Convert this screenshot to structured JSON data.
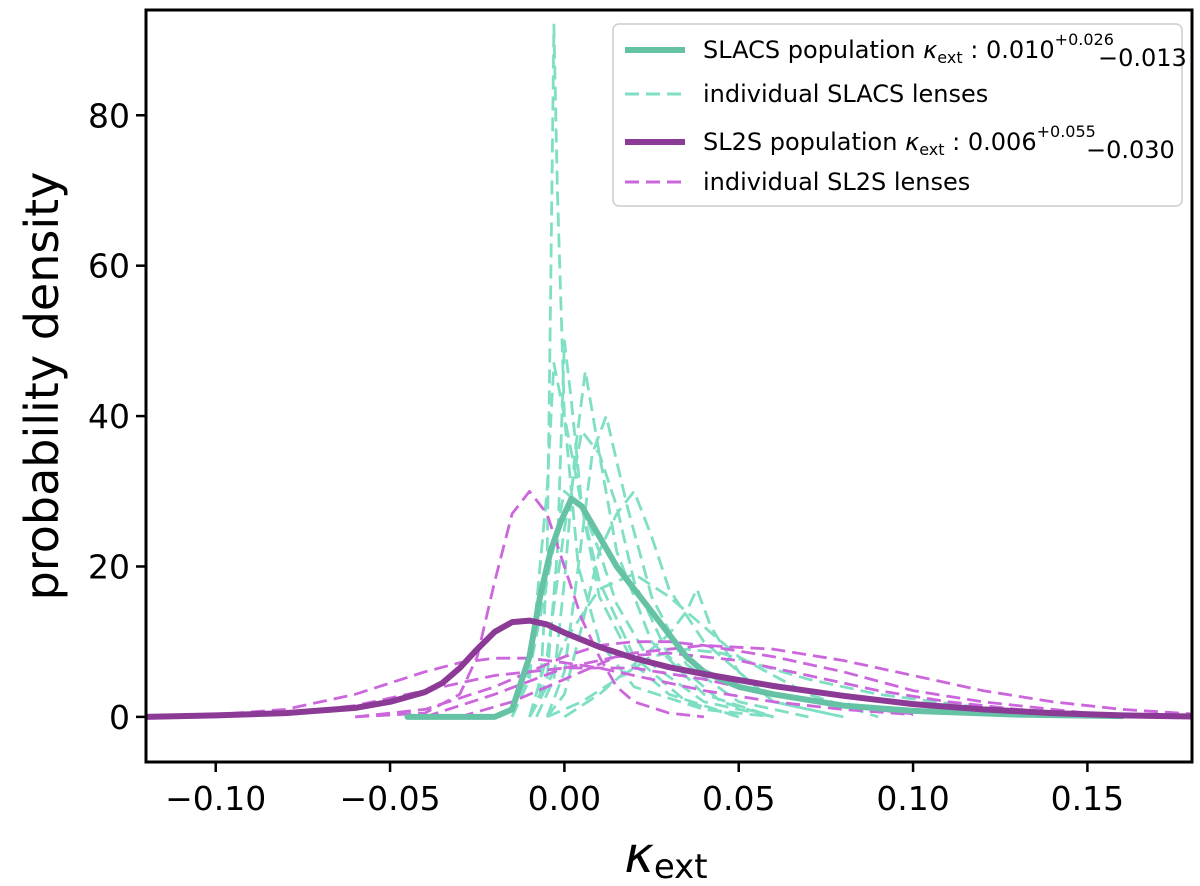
{
  "chart_data": {
    "type": "line",
    "title": "",
    "xlabel": "κ_ext",
    "ylabel": "probability density",
    "xlim": [
      -0.12,
      0.18
    ],
    "ylim": [
      -6,
      94
    ],
    "xticks": [
      -0.1,
      -0.05,
      0.0,
      0.05,
      0.1,
      0.15
    ],
    "xtick_labels": [
      "−0.10",
      "−0.05",
      "0.00",
      "0.05",
      "0.10",
      "0.15"
    ],
    "yticks": [
      0,
      20,
      40,
      60,
      80
    ],
    "ytick_labels": [
      "0",
      "20",
      "40",
      "60",
      "80"
    ],
    "grid": false,
    "legend_position": "top-right",
    "colors": {
      "slacs_population": "#66c2a5",
      "slacs_individual": "#7fdfc4",
      "sl2s_population": "#8b3a96",
      "sl2s_individual": "#cc66dd"
    },
    "legend": [
      {
        "label_main": "SLACS population ",
        "label_kappa": "κ",
        "label_sub": "ext",
        "label_value": " : 0.010",
        "label_sup": "+0.026",
        "label_lower": "−0.013",
        "style": "solid",
        "series": "slacs_population"
      },
      {
        "label_main": "individual SLACS lenses",
        "style": "dashed",
        "series": "slacs_individual"
      },
      {
        "label_main": "SL2S population ",
        "label_kappa": "κ",
        "label_sub": "ext",
        "label_value": " : 0.006",
        "label_sup": "+0.055",
        "label_lower": "−0.030",
        "style": "solid",
        "series": "sl2s_population"
      },
      {
        "label_main": "individual SL2S lenses",
        "style": "dashed",
        "series": "sl2s_individual"
      }
    ],
    "series": [
      {
        "name": "SLACS population",
        "group": "slacs_population",
        "style": "solid",
        "x": [
          -0.045,
          -0.03,
          -0.02,
          -0.015,
          -0.01,
          -0.007,
          -0.004,
          -0.001,
          0.002,
          0.005,
          0.01,
          0.015,
          0.02,
          0.025,
          0.03,
          0.035,
          0.04,
          0.05,
          0.06,
          0.08,
          0.1,
          0.13,
          0.16
        ],
        "y": [
          0,
          0,
          0,
          1,
          8,
          16,
          22,
          26,
          29,
          28,
          24,
          20,
          17,
          14,
          11,
          8,
          6,
          4,
          3,
          1.5,
          0.8,
          0.3,
          0.1
        ]
      },
      {
        "name": "SL2S population",
        "group": "sl2s_population",
        "style": "solid",
        "x": [
          -0.12,
          -0.1,
          -0.08,
          -0.06,
          -0.05,
          -0.04,
          -0.035,
          -0.03,
          -0.025,
          -0.02,
          -0.015,
          -0.01,
          -0.005,
          0.0,
          0.01,
          0.02,
          0.03,
          0.04,
          0.05,
          0.06,
          0.08,
          0.1,
          0.12,
          0.14,
          0.16,
          0.18
        ],
        "y": [
          0,
          0.2,
          0.5,
          1.2,
          2.0,
          3.3,
          4.5,
          6.5,
          9.0,
          11.3,
          12.6,
          12.8,
          12.3,
          11.2,
          9.3,
          7.8,
          6.6,
          5.7,
          4.9,
          4.1,
          2.8,
          1.7,
          1.0,
          0.5,
          0.2,
          0.05
        ]
      },
      {
        "name": "individual SLACS 1",
        "group": "slacs_individual",
        "style": "dashed",
        "x": [
          -0.01,
          -0.007,
          -0.005,
          -0.004,
          -0.003,
          -0.002,
          0.0,
          0.004,
          0.01,
          0.02,
          0.04,
          0.06
        ],
        "y": [
          0,
          3,
          20,
          55,
          92,
          70,
          40,
          20,
          10,
          4,
          1,
          0
        ]
      },
      {
        "name": "individual SLACS 2",
        "group": "slacs_individual",
        "style": "dashed",
        "x": [
          -0.01,
          -0.005,
          -0.002,
          0.0,
          0.002,
          0.005,
          0.01,
          0.02,
          0.03,
          0.05
        ],
        "y": [
          0,
          5,
          22,
          50,
          42,
          28,
          16,
          7,
          3,
          0
        ]
      },
      {
        "name": "individual SLACS 3",
        "group": "slacs_individual",
        "style": "dashed",
        "x": [
          -0.015,
          -0.01,
          -0.005,
          -0.003,
          0.0,
          0.005,
          0.01,
          0.02,
          0.035,
          0.05
        ],
        "y": [
          0,
          5,
          30,
          47,
          40,
          28,
          18,
          8,
          2,
          0
        ]
      },
      {
        "name": "individual SLACS 4",
        "group": "slacs_individual",
        "style": "dashed",
        "x": [
          -0.008,
          -0.003,
          0.0,
          0.003,
          0.006,
          0.01,
          0.015,
          0.025,
          0.04,
          0.06
        ],
        "y": [
          0,
          5,
          18,
          35,
          46,
          35,
          22,
          10,
          3,
          0
        ]
      },
      {
        "name": "individual SLACS 5",
        "group": "slacs_individual",
        "style": "dashed",
        "x": [
          -0.005,
          0.0,
          0.004,
          0.008,
          0.012,
          0.018,
          0.025,
          0.035,
          0.05,
          0.07
        ],
        "y": [
          0,
          6,
          20,
          35,
          40,
          28,
          16,
          7,
          2,
          0
        ]
      },
      {
        "name": "individual SLACS 6",
        "group": "slacs_individual",
        "style": "dashed",
        "x": [
          -0.01,
          -0.005,
          0.0,
          0.005,
          0.01,
          0.015,
          0.02,
          0.03,
          0.045,
          0.06
        ],
        "y": [
          0,
          8,
          25,
          38,
          35,
          28,
          18,
          8,
          2,
          0
        ]
      },
      {
        "name": "individual SLACS 7",
        "group": "slacs_individual",
        "style": "dashed",
        "x": [
          -0.005,
          0.0,
          0.005,
          0.01,
          0.015,
          0.02,
          0.025,
          0.03,
          0.04,
          0.06,
          0.08
        ],
        "y": [
          0,
          3,
          12,
          22,
          27,
          30,
          24,
          17,
          10,
          2,
          0
        ]
      },
      {
        "name": "individual SLACS 8",
        "group": "slacs_individual",
        "style": "dashed",
        "x": [
          -0.01,
          -0.005,
          0.0,
          0.01,
          0.02,
          0.03,
          0.04,
          0.05,
          0.07,
          0.09
        ],
        "y": [
          0,
          4,
          10,
          17,
          19,
          16,
          12,
          8,
          3,
          0
        ]
      },
      {
        "name": "individual SLACS 9",
        "group": "slacs_individual",
        "style": "dashed",
        "x": [
          0.0,
          0.01,
          0.02,
          0.03,
          0.035,
          0.038,
          0.042,
          0.05,
          0.06,
          0.08
        ],
        "y": [
          0,
          3,
          7,
          11,
          14,
          17,
          12,
          6,
          2,
          0
        ]
      },
      {
        "name": "individual SLACS 10",
        "group": "slacs_individual",
        "style": "dashed",
        "x": [
          -0.015,
          -0.01,
          -0.005,
          0.0,
          0.005,
          0.01,
          0.015,
          0.025,
          0.04,
          0.06
        ],
        "y": [
          0,
          6,
          18,
          30,
          28,
          22,
          15,
          7,
          2,
          0
        ]
      },
      {
        "name": "individual SLACS 11",
        "group": "slacs_individual",
        "style": "dashed",
        "x": [
          -0.005,
          0.005,
          0.015,
          0.025,
          0.035,
          0.045,
          0.055,
          0.07,
          0.09,
          0.12,
          0.15,
          0.18
        ],
        "y": [
          0,
          2,
          5,
          8,
          9,
          8.5,
          7,
          5,
          3,
          1.2,
          0.4,
          0.1
        ]
      },
      {
        "name": "individual SL2S 1",
        "group": "sl2s_individual",
        "style": "dashed",
        "x": [
          -0.06,
          -0.04,
          -0.03,
          -0.025,
          -0.02,
          -0.015,
          -0.01,
          -0.005,
          0.0,
          0.005,
          0.01,
          0.015,
          0.02,
          0.03,
          0.04
        ],
        "y": [
          0,
          0.5,
          3,
          8,
          18,
          27,
          30,
          27,
          20,
          13,
          8,
          4,
          2,
          0.5,
          0
        ]
      },
      {
        "name": "individual SL2S 2",
        "group": "sl2s_individual",
        "style": "dashed",
        "x": [
          -0.12,
          -0.1,
          -0.08,
          -0.06,
          -0.04,
          -0.03,
          -0.02,
          -0.01,
          0.0,
          0.01,
          0.02,
          0.04,
          0.06,
          0.08,
          0.1
        ],
        "y": [
          0,
          0.3,
          1,
          3,
          6,
          7.2,
          7.8,
          7.8,
          7.2,
          6.5,
          5.5,
          3.5,
          2,
          1,
          0.3
        ]
      },
      {
        "name": "individual SL2S 3",
        "group": "sl2s_individual",
        "style": "dashed",
        "x": [
          -0.06,
          -0.04,
          -0.02,
          0.0,
          0.01,
          0.02,
          0.03,
          0.04,
          0.06,
          0.08,
          0.1,
          0.12,
          0.15,
          0.18
        ],
        "y": [
          0,
          1,
          4,
          8,
          9.5,
          10,
          10,
          9.5,
          8,
          6,
          3.5,
          2,
          0.5,
          0.1
        ]
      },
      {
        "name": "individual SL2S 4",
        "group": "sl2s_individual",
        "style": "dashed",
        "x": [
          -0.04,
          -0.02,
          0.0,
          0.02,
          0.04,
          0.06,
          0.08,
          0.1,
          0.12,
          0.14,
          0.16,
          0.18
        ],
        "y": [
          0,
          3,
          6.5,
          8.5,
          9.5,
          9,
          7.5,
          5.5,
          3.5,
          2,
          1,
          0.4
        ]
      },
      {
        "name": "individual SL2S 5",
        "group": "sl2s_individual",
        "style": "dashed",
        "x": [
          -0.03,
          -0.015,
          0.0,
          0.015,
          0.03,
          0.05,
          0.07,
          0.09,
          0.11,
          0.13,
          0.15
        ],
        "y": [
          0,
          2,
          5,
          8,
          8.5,
          7.5,
          5.5,
          3.5,
          2,
          1,
          0.3
        ]
      },
      {
        "name": "individual SL2S 6",
        "group": "sl2s_individual",
        "style": "dashed",
        "x": [
          -0.1,
          -0.08,
          -0.06,
          -0.04,
          -0.02,
          0.0,
          0.02,
          0.04,
          0.06,
          0.08,
          0.1
        ],
        "y": [
          0,
          0.5,
          1.5,
          3.5,
          5.5,
          6.5,
          6.5,
          5,
          3,
          1.5,
          0.4
        ]
      }
    ]
  }
}
